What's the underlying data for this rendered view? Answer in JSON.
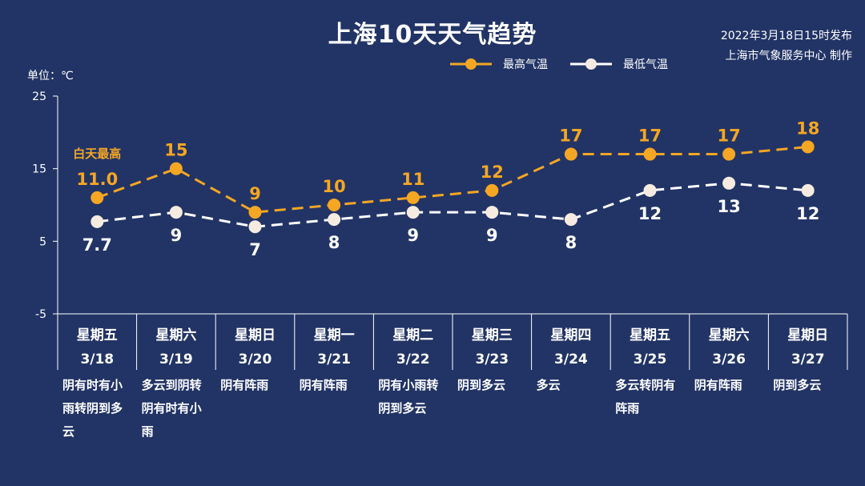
{
  "title": "上海10天天气趋势",
  "publish_time": "2022年3月18日15时发布",
  "publisher": "上海市气象服务中心 制作",
  "unit_label": "单位：℃",
  "annotation": "白天最高",
  "colors": {
    "background": "#223466",
    "high": "#f5a623",
    "low": "#f5ebe0",
    "axis": "#ffffff"
  },
  "chart_data": {
    "type": "line",
    "title": "上海10天天气趋势",
    "ylabel": "单位：℃",
    "ylim": [
      -5,
      25
    ],
    "yticks": [
      25,
      15,
      5,
      -5
    ],
    "legend_position": "top-right",
    "grid": false,
    "categories": [
      {
        "day": "星期五",
        "date": "3/18",
        "desc": [
          "阴有时有小",
          "雨转阴到多",
          "云"
        ]
      },
      {
        "day": "星期六",
        "date": "3/19",
        "desc": [
          "多云到阴转",
          "阴有时有小",
          "雨"
        ]
      },
      {
        "day": "星期日",
        "date": "3/20",
        "desc": [
          "阴有阵雨"
        ]
      },
      {
        "day": "星期一",
        "date": "3/21",
        "desc": [
          "阴有阵雨"
        ]
      },
      {
        "day": "星期二",
        "date": "3/22",
        "desc": [
          "阴有小雨转",
          "阴到多云"
        ]
      },
      {
        "day": "星期三",
        "date": "3/23",
        "desc": [
          "阴到多云"
        ]
      },
      {
        "day": "星期四",
        "date": "3/24",
        "desc": [
          "多云"
        ]
      },
      {
        "day": "星期五",
        "date": "3/25",
        "desc": [
          "多云转阴有",
          "阵雨"
        ]
      },
      {
        "day": "星期六",
        "date": "3/26",
        "desc": [
          "阴有阵雨"
        ]
      },
      {
        "day": "星期日",
        "date": "3/27",
        "desc": [
          "阴到多云"
        ]
      }
    ],
    "series": [
      {
        "name": "最高气温",
        "values": [
          11.0,
          15,
          9,
          10,
          11,
          12,
          17,
          17,
          17,
          18
        ],
        "labels": [
          "11.0",
          "15",
          "9",
          "10",
          "11",
          "12",
          "17",
          "17",
          "17",
          "18"
        ]
      },
      {
        "name": "最低气温",
        "values": [
          7.7,
          9,
          7,
          8,
          9,
          9,
          8,
          12,
          13,
          12
        ],
        "labels": [
          "7.7",
          "9",
          "7",
          "8",
          "9",
          "9",
          "8",
          "12",
          "13",
          "12"
        ]
      }
    ]
  }
}
